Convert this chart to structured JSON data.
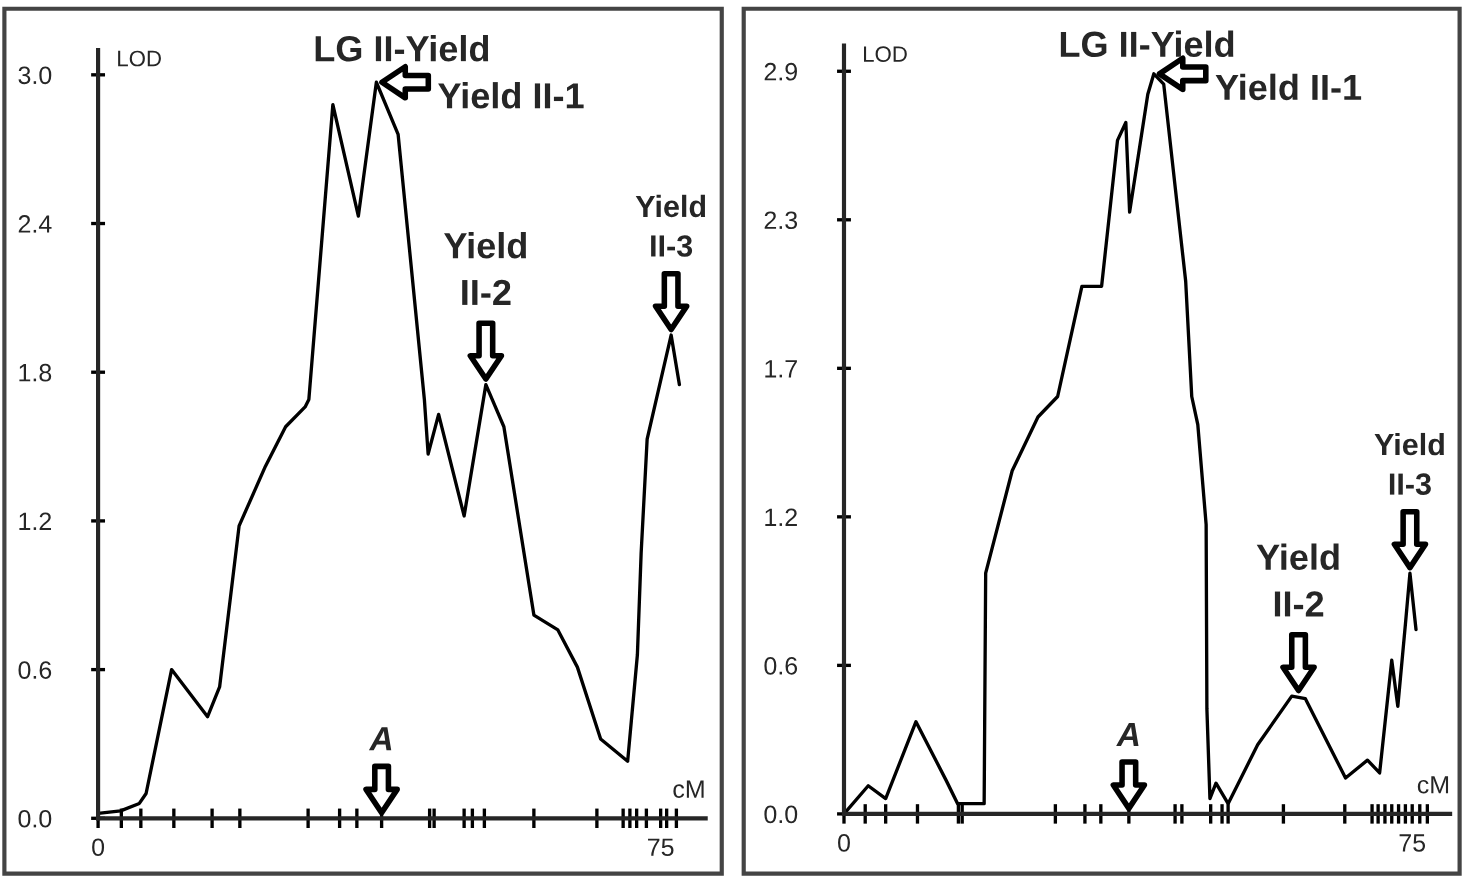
{
  "chart_data": [
    {
      "type": "line",
      "title": "LG II-Yield",
      "xlabel": "cM",
      "ylabel": "LOD",
      "xlim": [
        0,
        81
      ],
      "ylim": [
        0,
        3.1
      ],
      "xticks": [
        0,
        {
          "value": 3.1,
          "label": null
        },
        {
          "value": 5.7,
          "label": null
        },
        {
          "value": 10.1,
          "label": null
        },
        {
          "value": 15.2,
          "label": null
        },
        {
          "value": 18.9,
          "label": null
        },
        {
          "value": 28.0,
          "label": null
        },
        {
          "value": 32.2,
          "label": null
        },
        {
          "value": 34.5,
          "label": null
        },
        {
          "value": 37.8,
          "label": null
        },
        {
          "value": 44.2,
          "label": null
        },
        {
          "value": 44.8,
          "label": null
        },
        {
          "value": 48.8,
          "label": null
        },
        {
          "value": 49.9,
          "label": null
        },
        {
          "value": 51.5,
          "label": null
        },
        {
          "value": 58.1,
          "label": null
        },
        {
          "value": 66.5,
          "label": null
        },
        {
          "value": 70.0,
          "label": null
        },
        {
          "value": 70.9,
          "label": null
        },
        {
          "value": 71.8,
          "label": null
        },
        {
          "value": 73.1,
          "label": null
        },
        75,
        {
          "value": 75.8,
          "label": null
        },
        {
          "value": 77.1,
          "label": null
        }
      ],
      "yticks": [
        {
          "value": 0,
          "label": "0.0"
        },
        0.6,
        1.2,
        1.8,
        2.4,
        {
          "value": 3,
          "label": "3.0"
        }
      ],
      "grid": false,
      "legend": false,
      "marker": "none",
      "line_style": "solid",
      "series": [
        {
          "color": "#000000",
          "x": [
            0,
            3,
            5.5,
            6.4,
            9.8,
            14.6,
            16.2,
            18.8,
            22.3,
            25,
            27.6,
            28.1,
            31.3,
            34.7,
            37.1,
            40,
            43.5,
            44,
            45.4,
            48.8,
            51.7,
            54.1,
            58.1,
            61.3,
            63.9,
            67,
            70.6,
            71.9,
            72.4,
            73.2,
            76.4,
            77.5
          ],
          "values": [
            0.02,
            0.03,
            0.06,
            0.1,
            0.6,
            0.41,
            0.53,
            1.18,
            1.42,
            1.58,
            1.66,
            1.69,
            2.88,
            2.43,
            2.97,
            2.76,
            1.69,
            1.47,
            1.63,
            1.22,
            1.75,
            1.58,
            0.82,
            0.76,
            0.61,
            0.32,
            0.23,
            0.66,
            1.07,
            1.53,
            1.95,
            1.75
          ]
        }
      ],
      "annotations": [
        {
          "text": "Yield II-1",
          "x": 37.1,
          "y": 2.97
        },
        {
          "text": "Yield\nII-2",
          "x": 51.7,
          "y": 1.75
        },
        {
          "text": "Yield\nII-3",
          "x": 76.4,
          "y": 1.95
        },
        "A"
      ]
    },
    {
      "type": "line",
      "title": "LG II-Yield",
      "xlabel": "cM",
      "ylabel": "LOD",
      "xlim": [
        0,
        80
      ],
      "ylim": [
        0,
        3.0
      ],
      "xticks": [
        0,
        {
          "value": 2.8,
          "label": null
        },
        {
          "value": 5.5,
          "label": null
        },
        {
          "value": 9.7,
          "label": null
        },
        {
          "value": 15.1,
          "label": null
        },
        {
          "value": 15.6,
          "label": null
        },
        {
          "value": 27.9,
          "label": null
        },
        {
          "value": 31.8,
          "label": null
        },
        {
          "value": 33.9,
          "label": null
        },
        {
          "value": 37.6,
          "label": null
        },
        {
          "value": 43.7,
          "label": null
        },
        {
          "value": 44.6,
          "label": null
        },
        {
          "value": 48.4,
          "label": null
        },
        {
          "value": 49.9,
          "label": null
        },
        {
          "value": 50.7,
          "label": null
        },
        {
          "value": 58.0,
          "label": null
        },
        {
          "value": 66.1,
          "label": null
        },
        {
          "value": 69.7,
          "label": null
        },
        {
          "value": 70.5,
          "label": null
        },
        {
          "value": 71.4,
          "label": null
        },
        {
          "value": 72.3,
          "label": null
        },
        {
          "value": 73.2,
          "label": null
        },
        {
          "value": 74.1,
          "label": null
        },
        75,
        {
          "value": 76.0,
          "label": null
        },
        {
          "value": 77.0,
          "label": null
        }
      ],
      "yticks": [
        {
          "value": 0,
          "label": "0.0"
        },
        {
          "value": 0.58,
          "label": "0.6"
        },
        {
          "value": 1.16,
          "label": "1.2"
        },
        {
          "value": 1.74,
          "label": "1.7"
        },
        {
          "value": 2.32,
          "label": "2.3"
        },
        2.9
      ],
      "grid": false,
      "legend": false,
      "marker": "none",
      "line_style": "solid",
      "series": [
        {
          "color": "#000000",
          "x": [
            0,
            3.2,
            5.5,
            9.5,
            13.5,
            15,
            18.5,
            18.7,
            22.2,
            25.6,
            28.2,
            31.4,
            34,
            36.1,
            37.2,
            37.7,
            40.1,
            40.9,
            42.2,
            45.1,
            45.9,
            46.7,
            47.8,
            47.9,
            48.3,
            49.1,
            50.7,
            54.6,
            59.1,
            60.9,
            66.2,
            69.1,
            70.7,
            72.3,
            73.1,
            74.1,
            74.7,
            75.5
          ],
          "values": [
            0,
            0.11,
            0.06,
            0.36,
            0.13,
            0.04,
            0.04,
            0.94,
            1.34,
            1.55,
            1.63,
            2.06,
            2.06,
            2.63,
            2.7,
            2.35,
            2.81,
            2.89,
            2.85,
            2.08,
            1.63,
            1.52,
            1.13,
            0.41,
            0.06,
            0.12,
            0.04,
            0.27,
            0.46,
            0.45,
            0.14,
            0.21,
            0.16,
            0.6,
            0.42,
            0.74,
            0.94,
            0.72
          ]
        }
      ],
      "annotations": [
        {
          "text": "Yield II-1",
          "x": 40.9,
          "y": 2.89
        },
        {
          "text": "Yield\nII-2",
          "x": 60.0,
          "y": 0.46
        },
        {
          "text": "Yield\nII-3",
          "x": 74.7,
          "y": 0.94
        },
        "A"
      ]
    }
  ]
}
